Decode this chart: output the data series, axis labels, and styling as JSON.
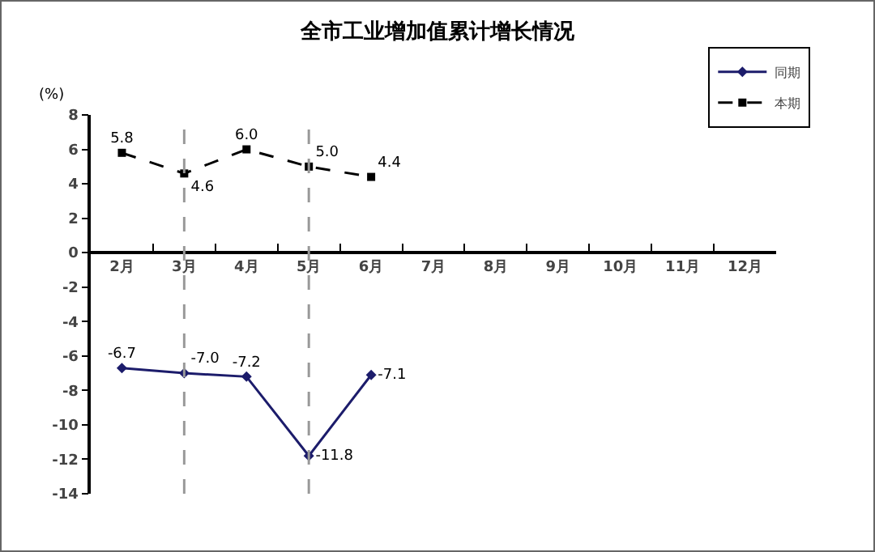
{
  "chart_data": {
    "type": "line",
    "title": "全市工业增加值累计增长情况",
    "ylabel": "(%)",
    "categories": [
      "2月",
      "3月",
      "4月",
      "5月",
      "6月",
      "7月",
      "8月",
      "9月",
      "10月",
      "11月",
      "12月"
    ],
    "series": [
      {
        "name": "同期",
        "color": "#1c1c6b",
        "marker": "diamond",
        "line_style": "solid",
        "values": [
          -6.7,
          -7.0,
          -7.2,
          -11.8,
          -7.1,
          null,
          null,
          null,
          null,
          null,
          null
        ],
        "value_labels": [
          "-6.7",
          "-7.0",
          "-7.2",
          "-11.8",
          "-7.1",
          null,
          null,
          null,
          null,
          null,
          null
        ]
      },
      {
        "name": "本期",
        "color": "#000000",
        "marker": "square",
        "line_style": "dashed",
        "values": [
          5.8,
          4.6,
          6.0,
          5.0,
          4.4,
          null,
          null,
          null,
          null,
          null,
          null
        ],
        "value_labels": [
          "5.8",
          "4.6",
          "6.0",
          "5.0",
          "4.4",
          null,
          null,
          null,
          null,
          null,
          null
        ]
      }
    ],
    "ylim": [
      -14,
      8
    ],
    "yticks": [
      -14,
      -12,
      -10,
      -8,
      -6,
      -4,
      -2,
      0,
      2,
      4,
      6,
      8
    ],
    "ref_lines": [
      {
        "axis": "x",
        "value": "3月",
        "color": "#999999",
        "line_style": "dashed"
      },
      {
        "axis": "x",
        "value": "5月",
        "color": "#999999",
        "line_style": "dashed"
      }
    ],
    "grid": false,
    "legend": "top right"
  }
}
